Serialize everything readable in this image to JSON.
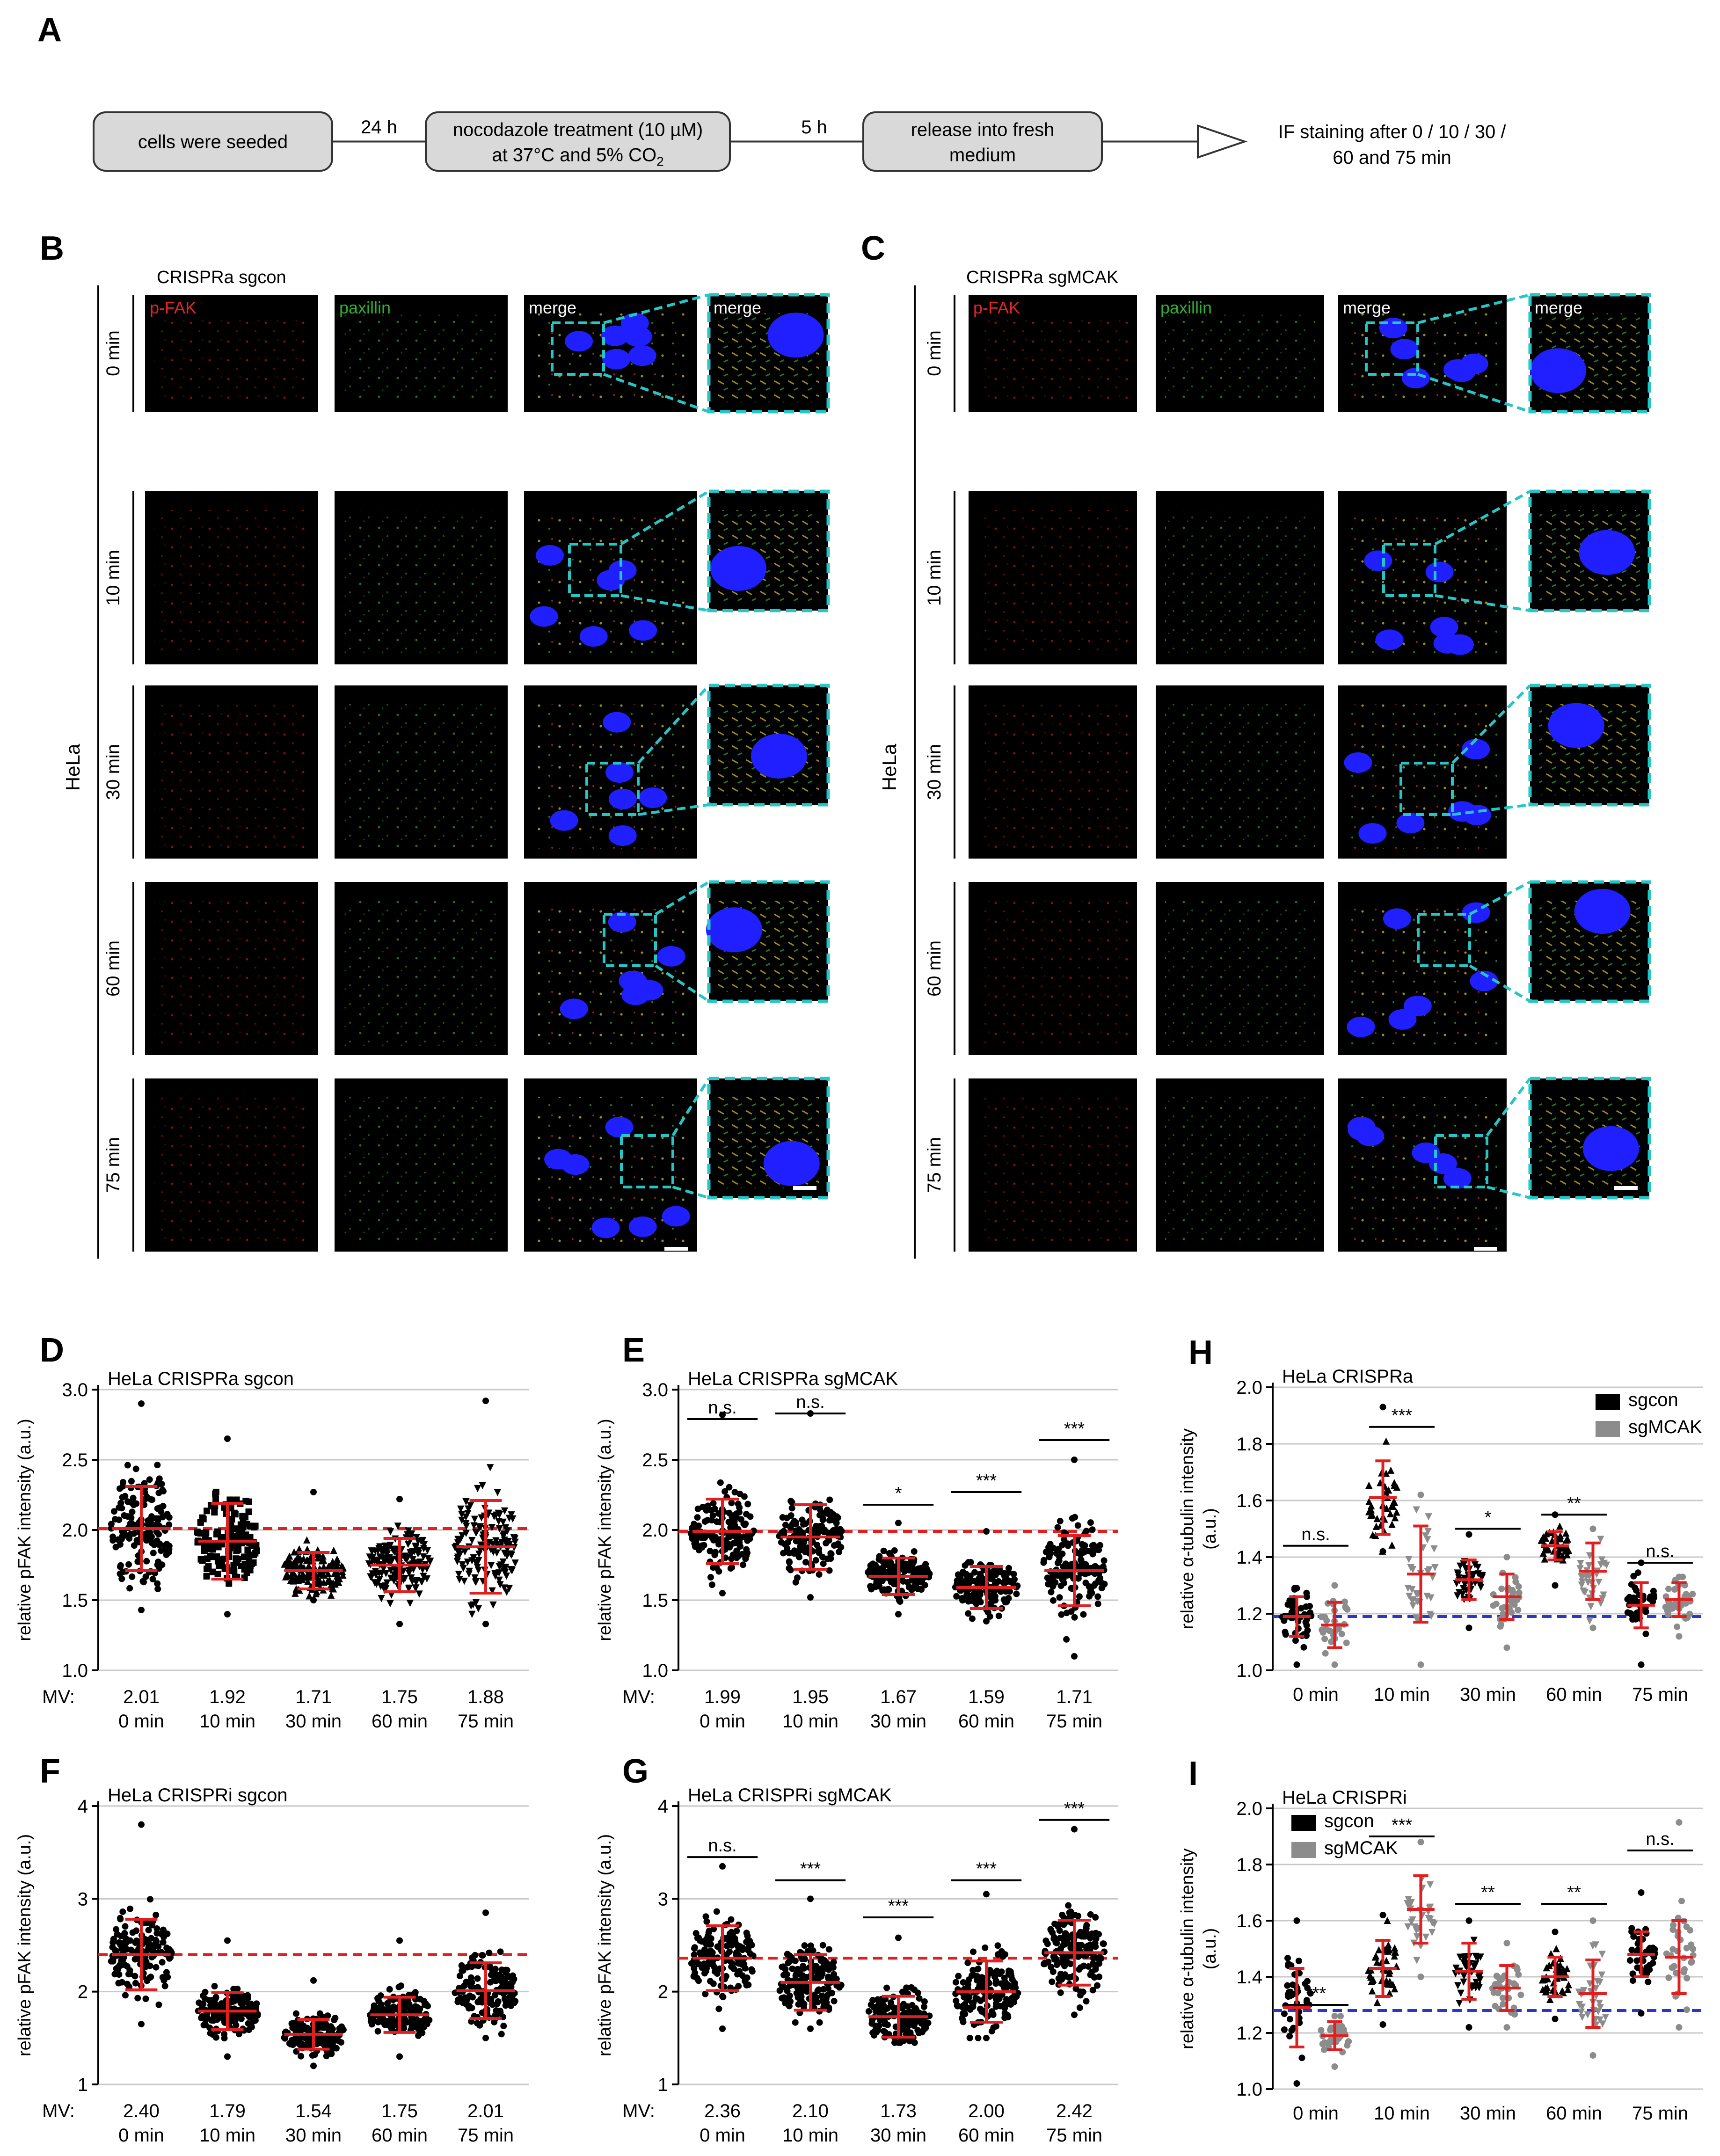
{
  "panel_letters": [
    "A",
    "B",
    "C",
    "D",
    "E",
    "F",
    "G",
    "H",
    "I"
  ],
  "flow": {
    "steps": [
      "cells were seeded",
      "nocodazole treatment (10 µM)",
      "at 37°C and 5% CO",
      "release into fresh",
      "medium"
    ],
    "co2_sub": "2",
    "arrow_labels": [
      "24 h",
      "5 h"
    ],
    "final": [
      "IF staining after 0 / 10 / 30 /",
      "60 and 75 min"
    ]
  },
  "micro": {
    "B_title": "CRISPRa sgcon",
    "C_title": "CRISPRa sgMCAK",
    "cell_line": "HeLa",
    "channels": [
      "p-FAK",
      "paxillin",
      "merge",
      "merge"
    ],
    "times": [
      "0 min",
      "10 min",
      "30 min",
      "60 min",
      "75 min"
    ],
    "colors": {
      "pfak": "#e8232a",
      "paxillin": "#2fb02f",
      "merge": "#ffffff",
      "zoom_box": "#25c6c6",
      "nucleus": "#1f1fff"
    }
  },
  "plot_common": {
    "ylabel_pfak": "relative pFAK intensity (a.u.)",
    "ylabel_tub": "relative α-tubulin intensity",
    "ylabel_tub2": "(a.u.)",
    "mv_label": "MV:",
    "times": [
      "0 min",
      "10 min",
      "30 min",
      "60 min",
      "75 min"
    ]
  },
  "chart_data": [
    {
      "panel": "D",
      "type": "scatter",
      "title": "HeLa CRISPRa sgcon",
      "categories": [
        "0 min",
        "10 min",
        "30 min",
        "60 min",
        "75 min"
      ],
      "mean": [
        2.01,
        1.92,
        1.71,
        1.75,
        1.88
      ],
      "sd": [
        0.3,
        0.27,
        0.13,
        0.19,
        0.33
      ],
      "min": [
        1.43,
        1.4,
        1.5,
        1.33,
        1.33
      ],
      "max": [
        2.9,
        2.65,
        2.27,
        2.22,
        2.92
      ],
      "mv": [
        "2.01",
        "1.92",
        "1.71",
        "1.75",
        "1.88"
      ],
      "ylim": [
        1.0,
        3.0
      ],
      "yticks": [
        "1.0",
        "1.5",
        "2.0",
        "2.5",
        "3.0"
      ],
      "reference_line": 2.01,
      "significance": []
    },
    {
      "panel": "E",
      "type": "scatter",
      "title": "HeLa CRISPRa sgMCAK",
      "categories": [
        "0 min",
        "10 min",
        "30 min",
        "60 min",
        "75 min"
      ],
      "mean": [
        1.99,
        1.95,
        1.67,
        1.59,
        1.71
      ],
      "sd": [
        0.23,
        0.23,
        0.13,
        0.15,
        0.25
      ],
      "min": [
        1.55,
        1.52,
        1.4,
        1.35,
        1.1
      ],
      "max": [
        2.82,
        2.83,
        2.05,
        1.99,
        2.5
      ],
      "mv": [
        "1.99",
        "1.95",
        "1.67",
        "1.59",
        "1.71"
      ],
      "ylim": [
        1.0,
        3.0
      ],
      "yticks": [
        "1.0",
        "1.5",
        "2.0",
        "2.5",
        "3.0"
      ],
      "reference_line": 1.99,
      "significance": [
        {
          "category": "0 min",
          "label": "n.s.",
          "y": 2.79
        },
        {
          "category": "10 min",
          "label": "n.s.",
          "y": 2.83
        },
        {
          "category": "30 min",
          "label": "*",
          "y": 2.18
        },
        {
          "category": "60 min",
          "label": "***",
          "y": 2.27
        },
        {
          "category": "75 min",
          "label": "***",
          "y": 2.64
        }
      ]
    },
    {
      "panel": "F",
      "type": "scatter",
      "title": "HeLa CRISPRi sgcon",
      "categories": [
        "0 min",
        "10 min",
        "30 min",
        "60 min",
        "75 min"
      ],
      "mean": [
        2.4,
        1.79,
        1.54,
        1.75,
        2.01
      ],
      "sd": [
        0.38,
        0.2,
        0.16,
        0.19,
        0.3
      ],
      "min": [
        1.65,
        1.3,
        1.2,
        1.3,
        1.5
      ],
      "max": [
        3.8,
        2.55,
        2.12,
        2.55,
        2.85
      ],
      "mv": [
        "2.40",
        "1.79",
        "1.54",
        "1.75",
        "2.01"
      ],
      "ylim": [
        1,
        4
      ],
      "yticks": [
        "1",
        "2",
        "3",
        "4"
      ],
      "reference_line": 2.4,
      "significance": []
    },
    {
      "panel": "G",
      "type": "scatter",
      "title": "HeLa CRISPRi sgMCAK",
      "categories": [
        "0 min",
        "10 min",
        "30 min",
        "60 min",
        "75 min"
      ],
      "mean": [
        2.36,
        2.1,
        1.73,
        2.0,
        2.42
      ],
      "sd": [
        0.35,
        0.3,
        0.22,
        0.33,
        0.35
      ],
      "min": [
        1.6,
        1.6,
        1.45,
        1.5,
        1.75
      ],
      "max": [
        3.35,
        3.0,
        2.58,
        3.05,
        3.75
      ],
      "mv": [
        "2.36",
        "2.10",
        "1.73",
        "2.00",
        "2.42"
      ],
      "ylim": [
        1,
        4
      ],
      "yticks": [
        "1",
        "2",
        "3",
        "4"
      ],
      "reference_line": 2.36,
      "significance": [
        {
          "category": "0 min",
          "label": "n.s.",
          "y": 3.45
        },
        {
          "category": "10 min",
          "label": "***",
          "y": 3.2
        },
        {
          "category": "30 min",
          "label": "***",
          "y": 2.8
        },
        {
          "category": "60 min",
          "label": "***",
          "y": 3.2
        },
        {
          "category": "75 min",
          "label": "***",
          "y": 3.85
        }
      ]
    },
    {
      "panel": "H",
      "type": "scatter",
      "title": "HeLa CRISPRa",
      "categories": [
        "0 min",
        "10 min",
        "30 min",
        "60 min",
        "75 min"
      ],
      "legend": [
        "sgcon",
        "sgMCAK"
      ],
      "ylim": [
        1.0,
        2.0
      ],
      "yticks": [
        "1.0",
        "1.2",
        "1.4",
        "1.6",
        "1.8",
        "2.0"
      ],
      "reference_line": 1.19,
      "series": [
        {
          "name": "sgcon",
          "color": "#000000",
          "mean": [
            1.19,
            1.61,
            1.32,
            1.44,
            1.23
          ],
          "sd": [
            0.07,
            0.13,
            0.07,
            0.05,
            0.08
          ],
          "min": [
            1.02,
            1.42,
            1.15,
            1.3,
            1.02
          ],
          "max": [
            1.29,
            1.93,
            1.48,
            1.55,
            1.38
          ]
        },
        {
          "name": "sgMCAK",
          "color": "#8c8c8c",
          "mean": [
            1.16,
            1.34,
            1.26,
            1.35,
            1.25
          ],
          "sd": [
            0.08,
            0.17,
            0.08,
            0.1,
            0.06
          ],
          "min": [
            1.02,
            1.02,
            1.08,
            1.15,
            1.12
          ],
          "max": [
            1.3,
            1.62,
            1.4,
            1.5,
            1.33
          ]
        }
      ],
      "significance": [
        {
          "category": "0 min",
          "label": "n.s.",
          "y": 1.44
        },
        {
          "category": "10 min",
          "label": "***",
          "y": 1.86
        },
        {
          "category": "30 min",
          "label": "*",
          "y": 1.5
        },
        {
          "category": "60 min",
          "label": "**",
          "y": 1.55
        },
        {
          "category": "75 min",
          "label": "n.s.",
          "y": 1.38
        }
      ]
    },
    {
      "panel": "I",
      "type": "scatter",
      "title": "HeLa CRISPRi",
      "categories": [
        "0 min",
        "10 min",
        "30 min",
        "60 min",
        "75 min"
      ],
      "legend": [
        "sgcon",
        "sgMCAK"
      ],
      "ylim": [
        1.0,
        2.0
      ],
      "yticks": [
        "1.0",
        "1.2",
        "1.4",
        "1.6",
        "1.8",
        "2.0"
      ],
      "reference_line": 1.28,
      "series": [
        {
          "name": "sgcon",
          "color": "#000000",
          "mean": [
            1.29,
            1.43,
            1.42,
            1.4,
            1.48
          ],
          "sd": [
            0.14,
            0.1,
            0.1,
            0.07,
            0.08
          ],
          "min": [
            1.02,
            1.23,
            1.22,
            1.25,
            1.27
          ],
          "max": [
            1.6,
            1.62,
            1.6,
            1.56,
            1.7
          ]
        },
        {
          "name": "sgMCAK",
          "color": "#8c8c8c",
          "mean": [
            1.19,
            1.64,
            1.36,
            1.34,
            1.47
          ],
          "sd": [
            0.05,
            0.12,
            0.08,
            0.12,
            0.13
          ],
          "min": [
            1.08,
            1.4,
            1.22,
            1.12,
            1.22
          ],
          "max": [
            1.26,
            1.88,
            1.52,
            1.6,
            1.95
          ]
        }
      ],
      "significance": [
        {
          "category": "0 min",
          "label": "***",
          "y": 1.3
        },
        {
          "category": "10 min",
          "label": "***",
          "y": 1.9
        },
        {
          "category": "30 min",
          "label": "**",
          "y": 1.66
        },
        {
          "category": "60 min",
          "label": "**",
          "y": 1.66
        },
        {
          "category": "75 min",
          "label": "n.s.",
          "y": 1.85
        }
      ]
    }
  ]
}
